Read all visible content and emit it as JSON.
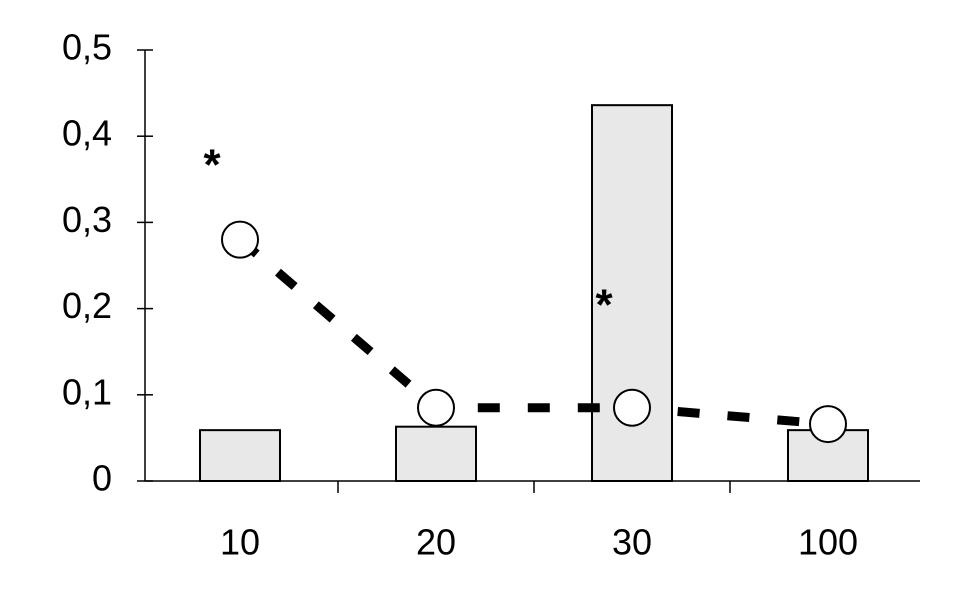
{
  "chart_data": {
    "type": "bar",
    "categories": [
      "10",
      "20",
      "30",
      "100"
    ],
    "series": [
      {
        "type": "bar",
        "color": "#e8e8e8",
        "values": [
          0.059,
          0.063,
          0.436,
          0.059
        ]
      },
      {
        "type": "line",
        "color": "#000000",
        "values": [
          0.28,
          0.085,
          0.085,
          0.066
        ]
      }
    ],
    "annotations": [
      {
        "label": "*",
        "category": "10"
      },
      {
        "label": "*",
        "category": "30"
      }
    ],
    "ylim": [
      0,
      0.5
    ],
    "yticks": [
      0,
      {
        "value": 0.1,
        "label": "0,1"
      },
      {
        "value": 0.2,
        "label": "0,2"
      },
      {
        "value": 0.3,
        "label": "0,3"
      },
      {
        "value": 0.4,
        "label": "0,4"
      },
      {
        "value": 0.5,
        "label": "0,5"
      }
    ],
    "grid": false
  }
}
